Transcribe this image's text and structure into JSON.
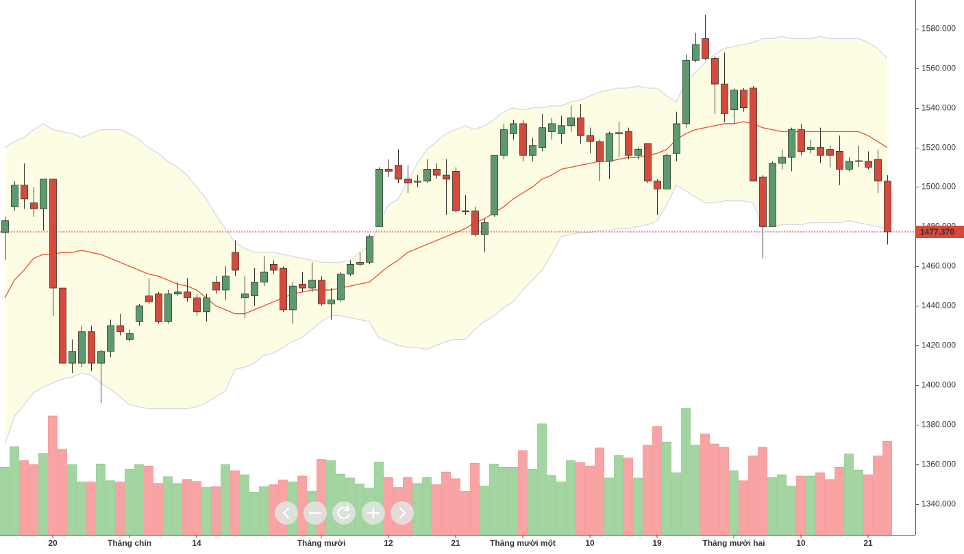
{
  "chart_data": {
    "type": "candlestick",
    "categories": [
      null,
      null,
      null,
      null,
      null,
      "20",
      null,
      null,
      null,
      null,
      null,
      null,
      null,
      "Tháng chín",
      null,
      null,
      null,
      null,
      null,
      null,
      "14",
      null,
      null,
      null,
      null,
      null,
      null,
      null,
      null,
      null,
      null,
      null,
      null,
      "Tháng mười",
      null,
      null,
      null,
      null,
      null,
      null,
      "12",
      null,
      null,
      null,
      null,
      null,
      null,
      "21",
      null,
      null,
      null,
      null,
      null,
      null,
      "Tháng mười một",
      null,
      null,
      null,
      null,
      null,
      null,
      "10",
      null,
      null,
      null,
      null,
      null,
      null,
      "19",
      null,
      null,
      null,
      null,
      null,
      null,
      null,
      "Tháng mười hai",
      null,
      null,
      null,
      null,
      null,
      null,
      "10",
      null,
      null,
      null,
      null,
      null,
      null,
      "21",
      null,
      null
    ],
    "open": [
      1477,
      1490,
      1501,
      1492,
      1489,
      1504,
      1449,
      1411,
      1411,
      1427,
      1411,
      1417,
      1430,
      1423,
      1432,
      1445,
      1446,
      1432,
      1446,
      1447,
      1444,
      1437,
      1452,
      1448,
      1467,
      1444,
      1445,
      1452,
      1461,
      1459,
      1438,
      1451,
      1449,
      1453,
      1441,
      1443,
      1456,
      1461,
      1462,
      1480,
      1509,
      1511,
      1504,
      1502.5,
      1503,
      1509,
      1506,
      1508,
      1488,
      1488,
      1476,
      1486,
      1516,
      1527,
      1532,
      1516,
      1520,
      1528,
      1527,
      1531,
      1535,
      1526,
      1523,
      1513,
      1527,
      1528,
      1516,
      1522,
      1503,
      1499,
      1517,
      1532,
      1564,
      1575,
      1565,
      1552,
      1539,
      1549,
      1550,
      1505,
      1480,
      1512,
      1515,
      1529,
      1519,
      1520,
      1519,
      1518,
      1509,
      1513,
      1513,
      1514,
      1503
    ],
    "high": [
      1485,
      1503,
      1512,
      1500,
      1504,
      1504,
      1449,
      1423,
      1430,
      1430,
      1418,
      1433,
      1436,
      1428,
      1441,
      1454,
      1447,
      1448,
      1452,
      1454,
      1446,
      1446,
      1455,
      1460,
      1473,
      1455,
      1459,
      1465,
      1463,
      1460,
      1452,
      1457,
      1462,
      1455,
      1449,
      1457,
      1463,
      1467,
      1476,
      1510,
      1514,
      1519,
      1511,
      1506,
      1514,
      1512,
      1514,
      1510,
      1496,
      1490,
      1484,
      1516,
      1532,
      1534,
      1534,
      1525,
      1537,
      1535,
      1536,
      1541,
      1542,
      1530,
      1524,
      1528,
      1533,
      1530,
      1520,
      1522,
      1504,
      1517,
      1538,
      1567,
      1578,
      1587,
      1566,
      1568,
      1550,
      1550,
      1551,
      1506,
      1513,
      1519,
      1530,
      1532,
      1524,
      1530,
      1521,
      1526,
      1515,
      1521,
      1518,
      1519,
      1506
    ],
    "low": [
      1463,
      1488,
      1489,
      1485,
      1478,
      1435,
      1411,
      1406,
      1409,
      1407,
      1391,
      1414,
      1425,
      1422,
      1430,
      1441,
      1431,
      1431,
      1445,
      1442,
      1435,
      1432,
      1446,
      1443,
      1455,
      1434,
      1440,
      1450,
      1456,
      1437,
      1431,
      1447,
      1447,
      1440,
      1433,
      1442,
      1455,
      1460,
      1461,
      1480,
      1505,
      1502,
      1497,
      1500,
      1502,
      1504,
      1486,
      1487,
      1486,
      1475,
      1467,
      1485,
      1514,
      1524,
      1513,
      1513,
      1518,
      1524,
      1522,
      1528,
      1522,
      1517,
      1503,
      1504,
      1515,
      1514,
      1514,
      1502,
      1486,
      1499,
      1513,
      1530,
      1563,
      1564,
      1537,
      1533,
      1532,
      1538,
      1503,
      1464,
      1480,
      1509,
      1508,
      1516,
      1517,
      1512,
      1510,
      1501,
      1508,
      1510,
      1509,
      1497,
      1471
    ],
    "close": [
      1483,
      1501,
      1494,
      1489,
      1504,
      1449,
      1411,
      1417,
      1427,
      1411,
      1417,
      1430,
      1427,
      1426,
      1440,
      1442,
      1432,
      1446,
      1447,
      1444,
      1437,
      1444,
      1448,
      1455,
      1458,
      1446,
      1452,
      1457,
      1458,
      1438,
      1450,
      1449,
      1453,
      1441,
      1443,
      1456,
      1461,
      1462,
      1475,
      1509,
      1508,
      1504,
      1502,
      1503,
      1509,
      1506,
      1504,
      1488,
      1487.5,
      1476,
      1482,
      1516,
      1529,
      1532,
      1516,
      1521,
      1530,
      1532,
      1531,
      1535,
      1526,
      1523,
      1513,
      1527,
      1527.5,
      1516,
      1519,
      1503,
      1499,
      1516,
      1532,
      1564,
      1572,
      1565,
      1552,
      1537,
      1549,
      1540,
      1503,
      1480,
      1512,
      1515,
      1529,
      1518,
      1520,
      1516,
      1516,
      1509,
      1513,
      1513.3,
      1510,
      1503,
      1477.37
    ],
    "volume": [
      101,
      132,
      111,
      105,
      122,
      178,
      128,
      105,
      79,
      79,
      106,
      81,
      79,
      98,
      105,
      103,
      77,
      87,
      77,
      83,
      80,
      71,
      72,
      105,
      96,
      90,
      64,
      72,
      75,
      82,
      79,
      88,
      65,
      113,
      111,
      91,
      85,
      76,
      70,
      109,
      86,
      71,
      86,
      77,
      86,
      75,
      94,
      84,
      65,
      107,
      73,
      106,
      101,
      101,
      126,
      98,
      166,
      89,
      79,
      111,
      108,
      103,
      130,
      85,
      119,
      115,
      85,
      134,
      162,
      139,
      93,
      189,
      134,
      151,
      136,
      131,
      96,
      81,
      118,
      131,
      86,
      90,
      73,
      88,
      88,
      93,
      83,
      101,
      121,
      97,
      90,
      118,
      140
    ],
    "upper_band": [
      1520,
      1523,
      1525,
      1529,
      1532,
      1529,
      1528,
      1527,
      1525,
      1527,
      1529,
      1529,
      1529,
      1527,
      1524,
      1520,
      1517,
      1513,
      1510,
      1506,
      1500,
      1494,
      1486,
      1479,
      1472,
      1469,
      1467,
      1467,
      1467,
      1466,
      1465,
      1464,
      1463,
      1462,
      1462,
      1462,
      1463,
      1467,
      1470,
      1481,
      1491,
      1494,
      1503,
      1512,
      1519,
      1523,
      1527,
      1529,
      1531,
      1529,
      1531,
      1534,
      1538,
      1540,
      1539,
      1540,
      1540,
      1541,
      1541,
      1543,
      1544,
      1546,
      1548,
      1549,
      1550,
      1550,
      1551,
      1550,
      1550,
      1546,
      1543,
      1553,
      1558,
      1563,
      1567,
      1570,
      1571,
      1572,
      1573,
      1575,
      1575,
      1576,
      1575,
      1575,
      1575,
      1576,
      1575,
      1575,
      1575,
      1575,
      1573,
      1570,
      1565
    ],
    "middle_band": [
      1444,
      1453,
      1458,
      1464,
      1466,
      1466,
      1467,
      1467,
      1468,
      1467,
      1466,
      1464,
      1462,
      1460,
      1458,
      1456,
      1455,
      1453,
      1451,
      1450,
      1448,
      1444,
      1440,
      1438,
      1436,
      1436,
      1438,
      1440,
      1442,
      1444,
      1446,
      1447,
      1448,
      1448,
      1448,
      1449,
      1450,
      1451,
      1452,
      1456,
      1460,
      1463,
      1467,
      1469,
      1471,
      1473,
      1475,
      1477,
      1479,
      1482,
      1484,
      1487,
      1490,
      1494,
      1497,
      1500,
      1504,
      1506,
      1509,
      1510,
      1511,
      1512,
      1513,
      1513,
      1514,
      1515,
      1515,
      1516,
      1517,
      1519,
      1524,
      1527,
      1529,
      1530,
      1531,
      1532,
      1532,
      1533,
      1532,
      1530,
      1529,
      1528,
      1528,
      1528,
      1528,
      1528,
      1528,
      1528,
      1528,
      1528,
      1526,
      1523,
      1520
    ],
    "lower_band": [
      1370,
      1384,
      1390,
      1396,
      1399,
      1401,
      1403,
      1404,
      1406,
      1405,
      1401,
      1398,
      1394,
      1390,
      1389,
      1388,
      1388,
      1388,
      1388,
      1388,
      1389,
      1391,
      1394,
      1397,
      1408,
      1409,
      1411,
      1415,
      1416,
      1419,
      1422,
      1424,
      1428,
      1432,
      1435,
      1435,
      1434,
      1433,
      1432,
      1424,
      1422,
      1420,
      1419,
      1419,
      1418,
      1420,
      1422,
      1423,
      1423,
      1428,
      1432,
      1435,
      1439,
      1442,
      1448,
      1453,
      1458,
      1466,
      1475,
      1476,
      1477,
      1477,
      1478,
      1478,
      1479,
      1479,
      1480,
      1481,
      1483,
      1491,
      1501,
      1498,
      1495,
      1492,
      1492,
      1493,
      1493,
      1493,
      1492,
      1480,
      1480,
      1481,
      1481,
      1481,
      1482,
      1482,
      1482,
      1482,
      1483,
      1482,
      1481,
      1480,
      1479
    ],
    "ylim": [
      1324.3,
      1594.5
    ],
    "yticks": [
      {
        "value": 1340,
        "label": "1340.000"
      },
      {
        "value": 1360,
        "label": "1360.000"
      },
      {
        "value": 1380,
        "label": "1380.000"
      },
      {
        "value": 1400,
        "label": "1400.000"
      },
      {
        "value": 1420,
        "label": "1420.000"
      },
      {
        "value": 1440,
        "label": "1440.000"
      },
      {
        "value": 1460,
        "label": "1460.000"
      },
      {
        "value": 1480,
        "label": "1480.000"
      },
      {
        "value": 1500,
        "label": "1500.000"
      },
      {
        "value": 1520,
        "label": "1520.000"
      },
      {
        "value": 1540,
        "label": "1540.000"
      },
      {
        "value": 1560,
        "label": "1560.000"
      },
      {
        "value": 1580,
        "label": "1580.000"
      }
    ],
    "vlim": [
      0,
      800
    ],
    "last_price": {
      "value": 1477.37,
      "label": "1477.370"
    },
    "up_color": "#5b9a6c",
    "down_color": "#d64a3b",
    "volume_up_color": "#a3d5a0",
    "volume_down_color": "#f9a4a4",
    "band_fill": "#fdfde3",
    "band_line": "#d5d6ea",
    "middle_color": "#f4553a"
  }
}
